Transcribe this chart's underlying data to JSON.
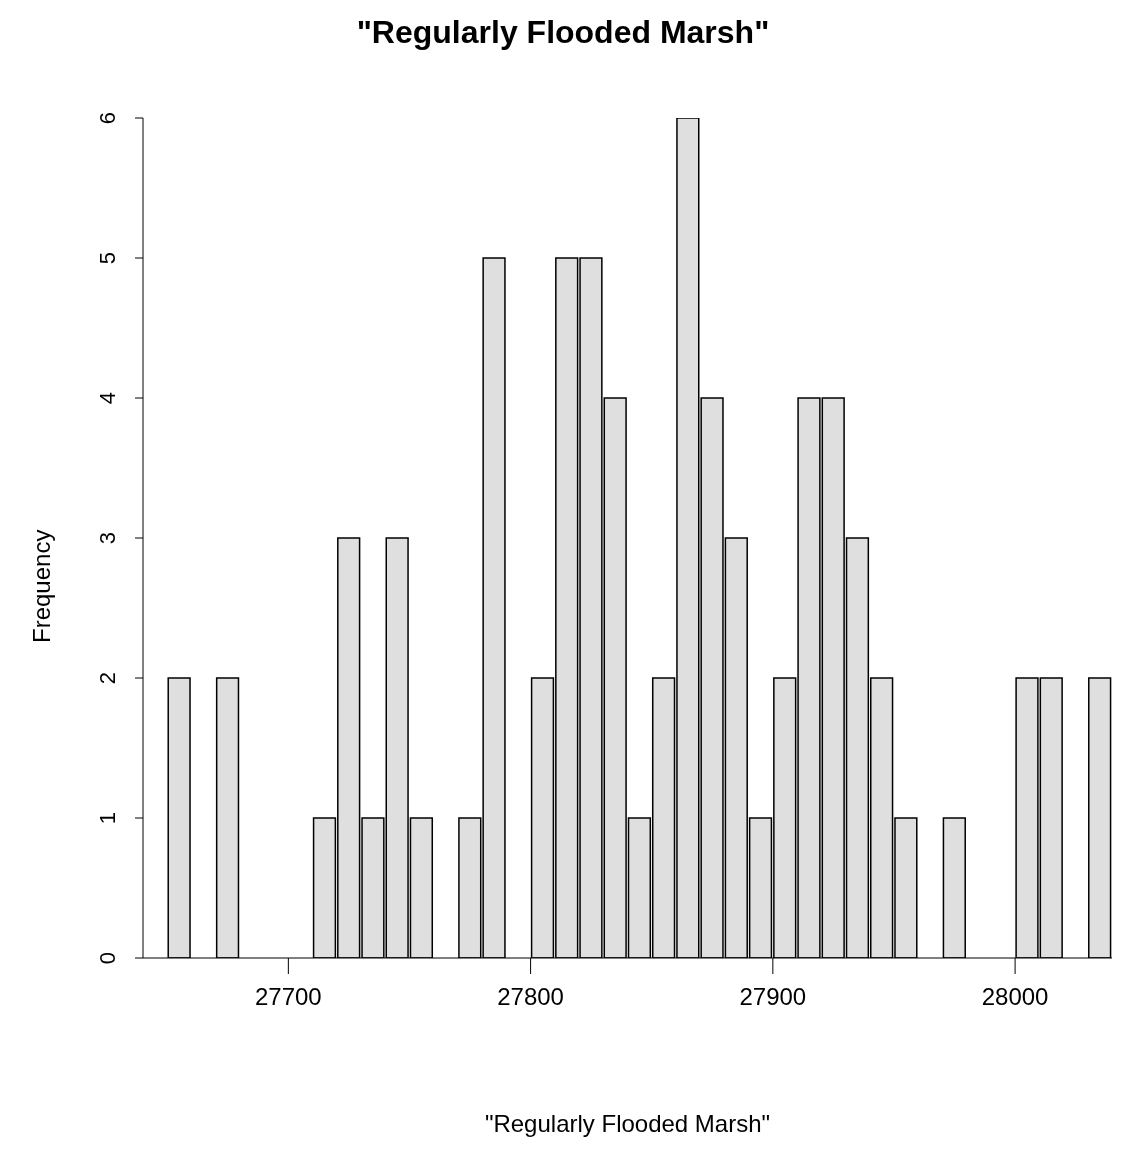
{
  "chart_data": {
    "type": "histogram",
    "title": "\"Regularly Flooded Marsh\"",
    "xlabel": "\"Regularly Flooded Marsh\"",
    "ylabel": "Frequency",
    "bins": [
      27650,
      27660,
      27670,
      27680,
      27690,
      27700,
      27710,
      27720,
      27730,
      27740,
      27750,
      27760,
      27770,
      27780,
      27790,
      27800,
      27810,
      27820,
      27830,
      27840,
      27850,
      27860,
      27870,
      27880,
      27890,
      27900,
      27910,
      27920,
      27930,
      27940,
      27950,
      27960,
      27970,
      27980,
      27990,
      28000,
      28010,
      28020,
      28030,
      28040
    ],
    "values": [
      2,
      0,
      2,
      0,
      0,
      0,
      1,
      3,
      1,
      3,
      1,
      0,
      1,
      5,
      0,
      2,
      5,
      5,
      4,
      1,
      2,
      6,
      4,
      3,
      1,
      2,
      4,
      4,
      3,
      2,
      1,
      0,
      1,
      0,
      0,
      2,
      2,
      0,
      2
    ],
    "color": "#dfdfdf",
    "xlim": [
      27640,
      28040
    ],
    "xticks": [
      27700,
      27800,
      27900,
      28000
    ],
    "ylim": [
      0,
      6
    ],
    "yticks": [
      0,
      1,
      2,
      3,
      4,
      5,
      6
    ],
    "grid": false,
    "legend": false
  }
}
